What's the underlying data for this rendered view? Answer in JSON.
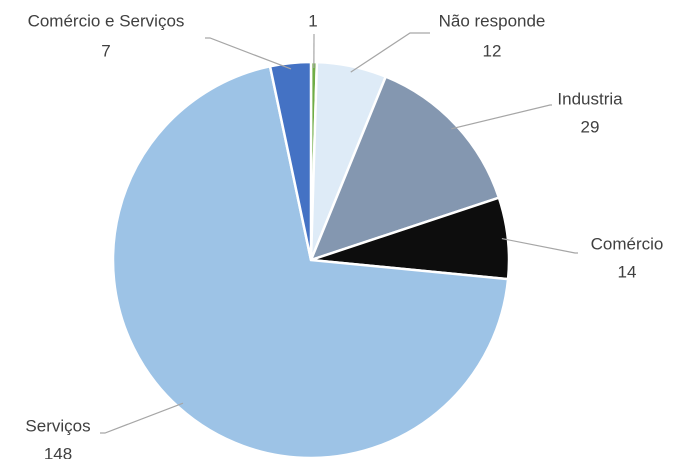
{
  "chart_data": {
    "type": "pie",
    "categories": [
      null,
      "Não responde",
      "Industria",
      "Comércio",
      "Serviços",
      "Comércio e Serviços"
    ],
    "values": [
      1,
      12,
      29,
      14,
      148,
      7
    ],
    "colors": [
      "#70ad47",
      "#deebf7",
      "#8497b0",
      "#0d0d0d",
      "#9dc3e6",
      "#4472c4"
    ]
  }
}
